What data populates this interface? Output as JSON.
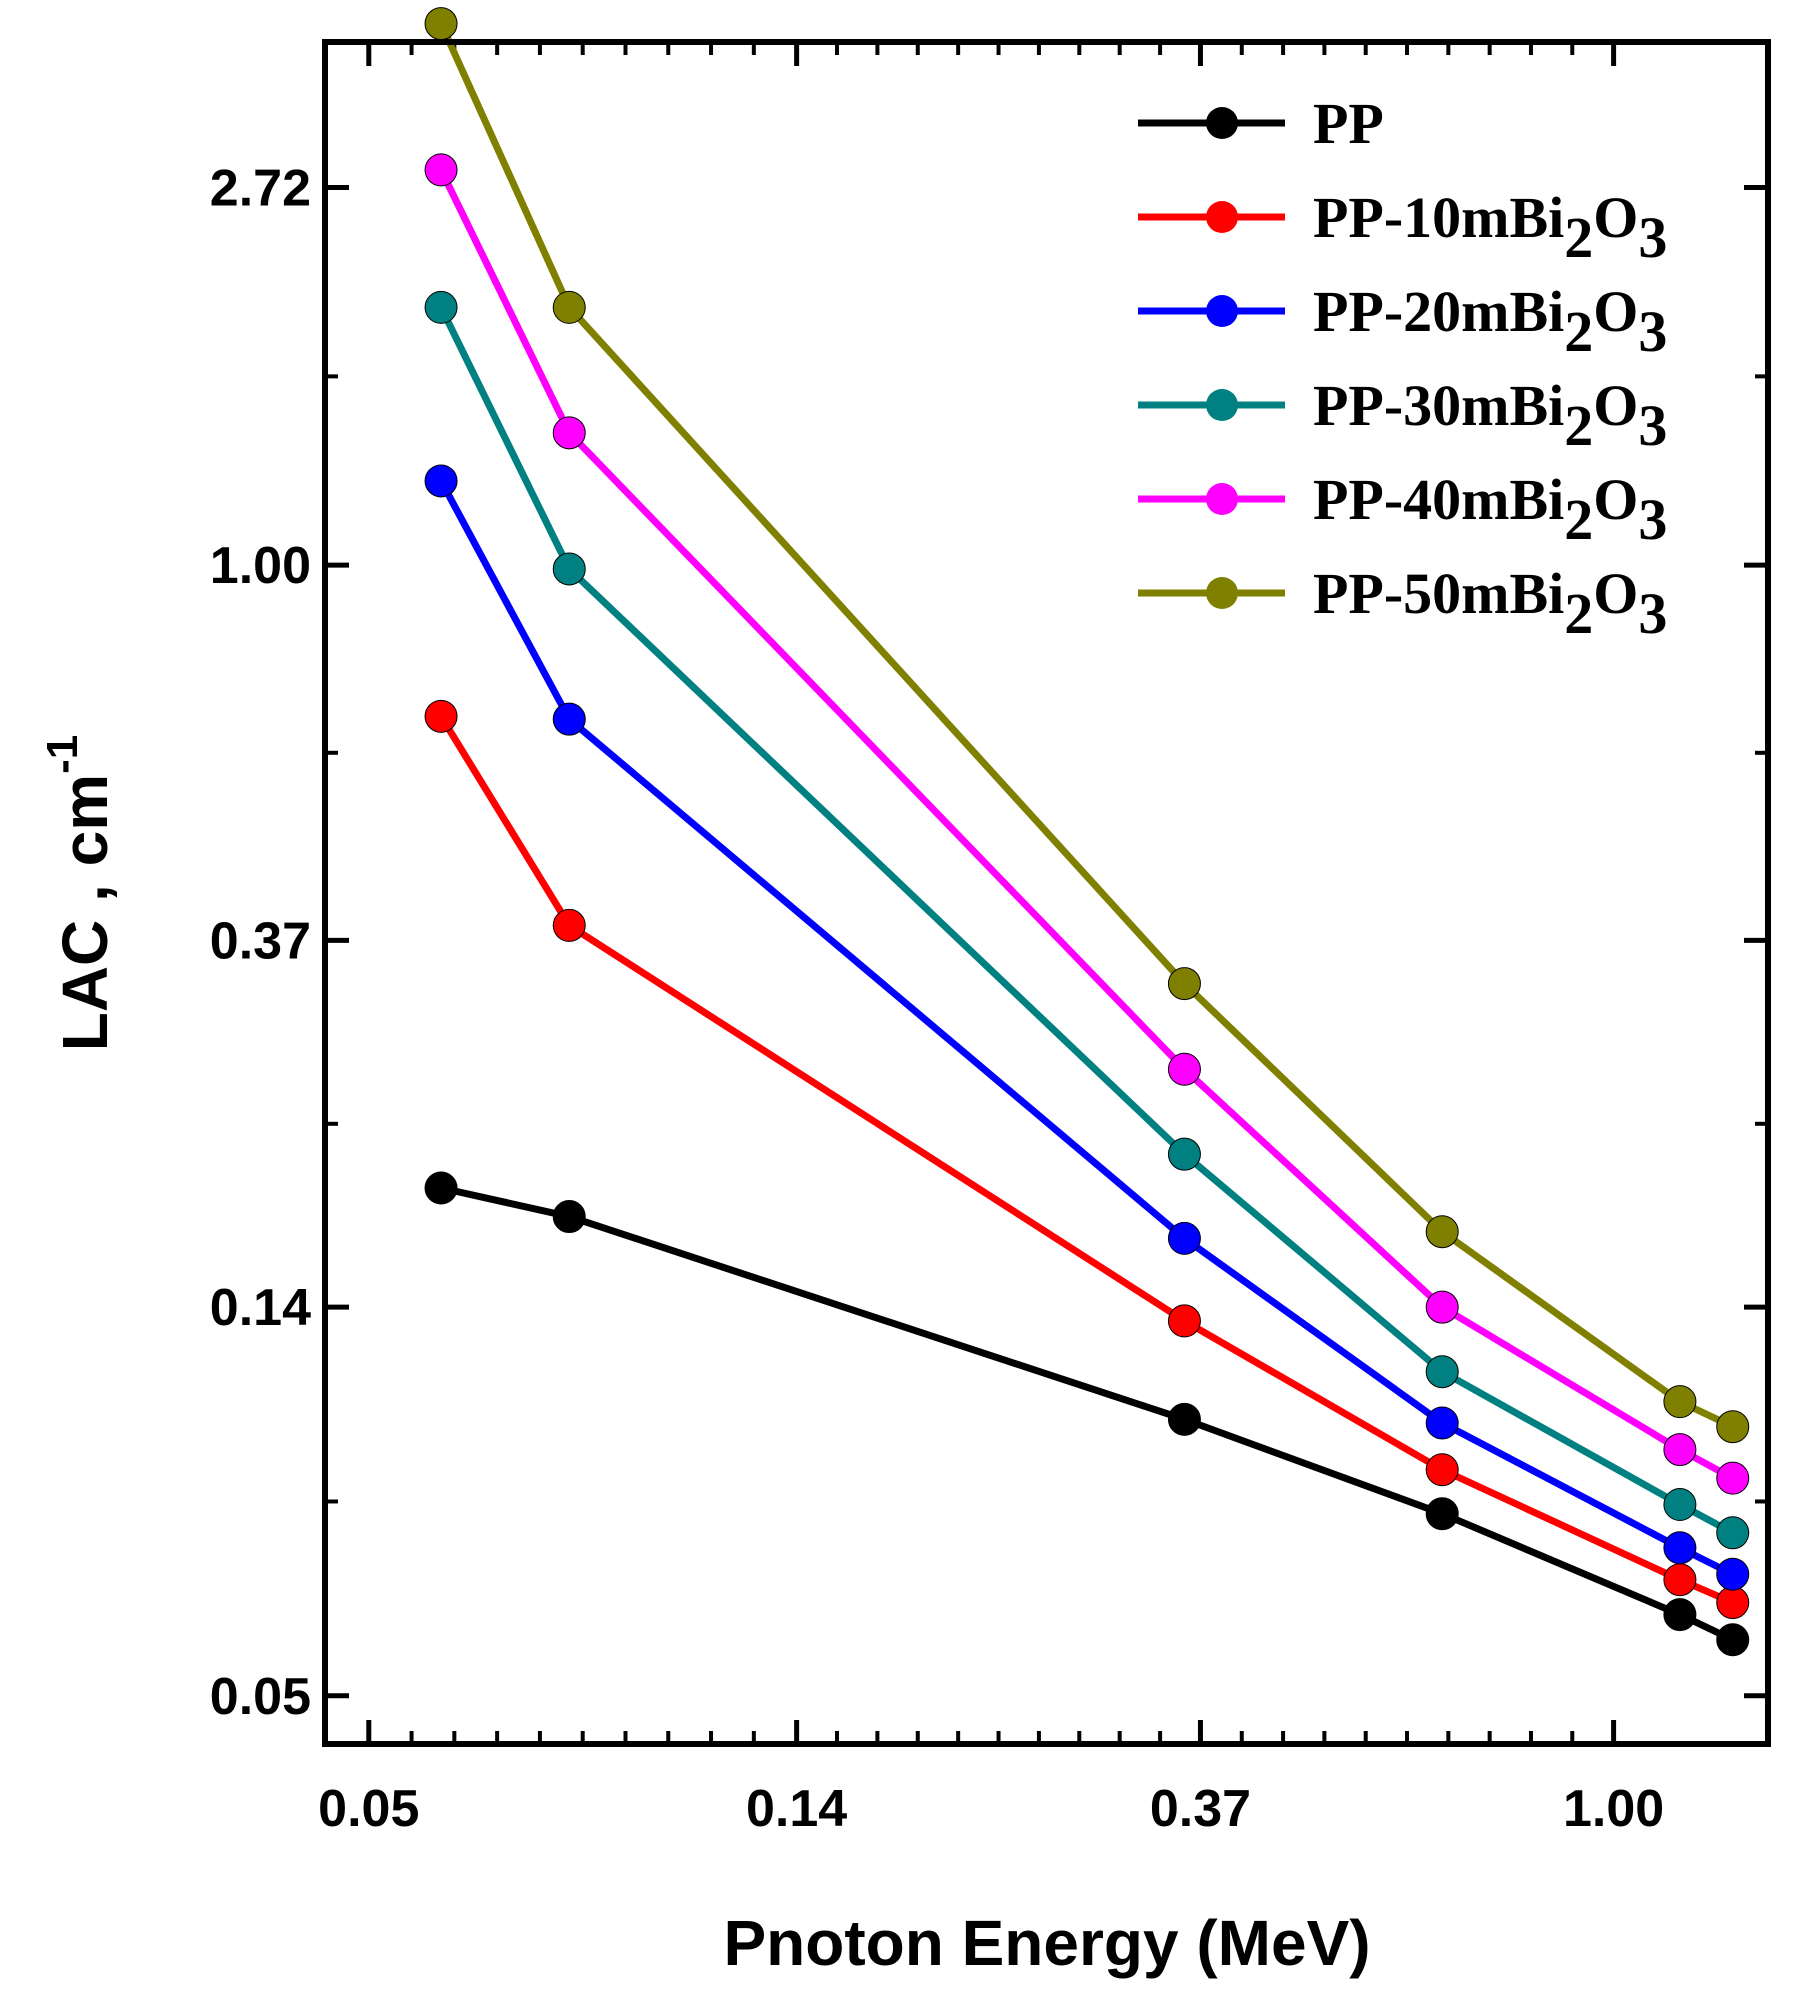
{
  "chart_data": {
    "type": "line",
    "xlabel": "Pnoton Energy (MeV)",
    "ylabel": "LAC , cm",
    "ylabel_sup": "-1",
    "xscale": "log",
    "yscale": "log",
    "xlim": [
      0.045,
      1.45
    ],
    "ylim": [
      0.044,
      4.0
    ],
    "xticks": [
      {
        "value": 0.05,
        "label": "0.05"
      },
      {
        "value": 0.14,
        "label": "0.14"
      },
      {
        "value": 0.37,
        "label": "0.37"
      },
      {
        "value": 1.0,
        "label": "1.00"
      }
    ],
    "yticks": [
      {
        "value": 0.05,
        "label": "0.05"
      },
      {
        "value": 0.14,
        "label": "0.14"
      },
      {
        "value": 0.37,
        "label": "0.37"
      },
      {
        "value": 1.0,
        "label": "1.00"
      },
      {
        "value": 2.72,
        "label": "2.72"
      }
    ],
    "legend_position": "top-right",
    "x": [
      0.0595,
      0.081,
      0.356,
      0.662,
      1.173,
      1.332
    ],
    "series": [
      {
        "name": "PP",
        "base": "PP-",
        "mid": "",
        "sub": "",
        "o": "",
        "sub2": "",
        "color": "#000000",
        "values": [
          0.192,
          0.178,
          0.104,
          0.081,
          0.062,
          0.058
        ]
      },
      {
        "name": "PP-10mBi2O3",
        "base": "PP-10mBi",
        "mid": "2",
        "sub": "O",
        "o": "3",
        "sub2": "",
        "color": "#ff0000",
        "values": [
          0.67,
          0.385,
          0.135,
          0.091,
          0.068,
          0.064
        ]
      },
      {
        "name": "PP-20mBi2O3",
        "base": "PP-20mBi",
        "mid": "2",
        "sub": "O",
        "o": "3",
        "sub2": "",
        "color": "#0000ff",
        "values": [
          1.25,
          0.665,
          0.168,
          0.103,
          0.074,
          0.069
        ]
      },
      {
        "name": "PP-30mBi2O3",
        "base": "PP-30mBi",
        "mid": "2",
        "sub": "O",
        "o": "3",
        "sub2": "",
        "color": "#008080",
        "values": [
          1.98,
          0.99,
          0.21,
          0.118,
          0.083,
          0.077
        ]
      },
      {
        "name": "PP-40mBi2O3",
        "base": "PP-40mBi",
        "mid": "2",
        "sub": "O",
        "o": "3",
        "sub2": "",
        "color": "#ff00ff",
        "values": [
          2.85,
          1.42,
          0.263,
          0.14,
          0.096,
          0.089
        ]
      },
      {
        "name": "PP-50mBi2O3",
        "base": "PP-50mBi",
        "mid": "2",
        "sub": "O",
        "o": "3",
        "sub2": "",
        "color": "#808000",
        "values": [
          4.2,
          1.98,
          0.33,
          0.171,
          0.109,
          0.102
        ]
      }
    ]
  }
}
